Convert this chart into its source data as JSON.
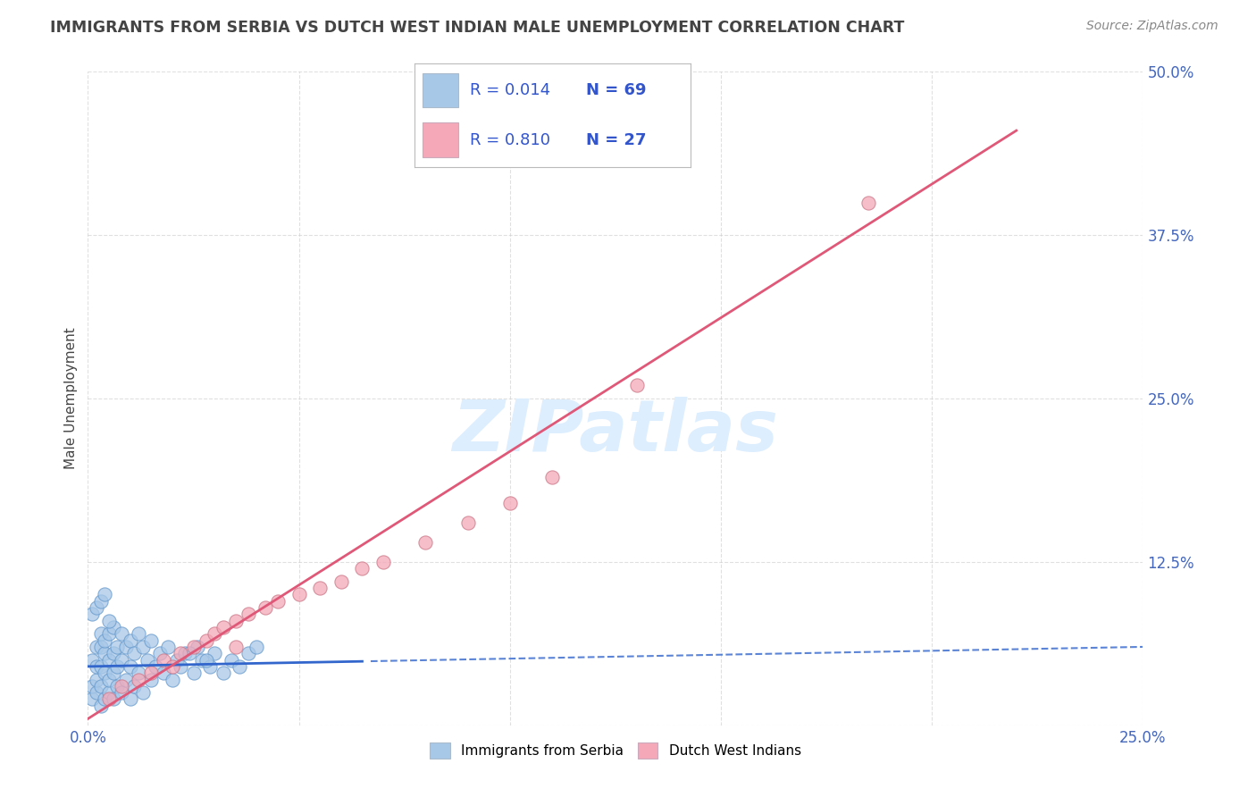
{
  "title": "IMMIGRANTS FROM SERBIA VS DUTCH WEST INDIAN MALE UNEMPLOYMENT CORRELATION CHART",
  "source_text": "Source: ZipAtlas.com",
  "ylabel": "Male Unemployment",
  "xlim": [
    0.0,
    0.25
  ],
  "ylim": [
    0.0,
    0.5
  ],
  "xtick_positions": [
    0.0,
    0.25
  ],
  "xtick_labels": [
    "0.0%",
    "25.0%"
  ],
  "yticks": [
    0.0,
    0.125,
    0.25,
    0.375,
    0.5
  ],
  "ytick_labels": [
    "",
    "12.5%",
    "25.0%",
    "37.5%",
    "50.0%"
  ],
  "serbia_color": "#a8c8e8",
  "dwi_color": "#f4a8b8",
  "serbia_line_color": "#3366cc",
  "dwi_line_color": "#e05878",
  "serbia_R": 0.014,
  "serbia_N": 69,
  "dwi_R": 0.81,
  "dwi_N": 27,
  "background_color": "#ffffff",
  "grid_color": "#cccccc",
  "title_color": "#444444",
  "axis_label_color": "#444444",
  "tick_color": "#4466bb",
  "legend_R_color": "#3355cc",
  "watermark": "ZIPatlas",
  "watermark_color": "#ddeeff",
  "serbia_scatter_x": [
    0.001,
    0.001,
    0.001,
    0.002,
    0.002,
    0.002,
    0.002,
    0.003,
    0.003,
    0.003,
    0.003,
    0.003,
    0.004,
    0.004,
    0.004,
    0.004,
    0.005,
    0.005,
    0.005,
    0.005,
    0.006,
    0.006,
    0.006,
    0.006,
    0.007,
    0.007,
    0.007,
    0.008,
    0.008,
    0.008,
    0.009,
    0.009,
    0.01,
    0.01,
    0.01,
    0.011,
    0.011,
    0.012,
    0.012,
    0.013,
    0.013,
    0.014,
    0.015,
    0.015,
    0.016,
    0.017,
    0.018,
    0.019,
    0.02,
    0.021,
    0.022,
    0.023,
    0.025,
    0.026,
    0.027,
    0.029,
    0.03,
    0.032,
    0.034,
    0.036,
    0.038,
    0.04,
    0.001,
    0.002,
    0.003,
    0.004,
    0.005,
    0.024,
    0.028
  ],
  "serbia_scatter_y": [
    0.02,
    0.03,
    0.05,
    0.025,
    0.035,
    0.045,
    0.06,
    0.015,
    0.03,
    0.045,
    0.06,
    0.07,
    0.02,
    0.04,
    0.055,
    0.065,
    0.025,
    0.035,
    0.05,
    0.07,
    0.02,
    0.04,
    0.055,
    0.075,
    0.03,
    0.045,
    0.06,
    0.025,
    0.05,
    0.07,
    0.035,
    0.06,
    0.02,
    0.045,
    0.065,
    0.03,
    0.055,
    0.04,
    0.07,
    0.025,
    0.06,
    0.05,
    0.035,
    0.065,
    0.045,
    0.055,
    0.04,
    0.06,
    0.035,
    0.05,
    0.045,
    0.055,
    0.04,
    0.06,
    0.05,
    0.045,
    0.055,
    0.04,
    0.05,
    0.045,
    0.055,
    0.06,
    0.085,
    0.09,
    0.095,
    0.1,
    0.08,
    0.055,
    0.05
  ],
  "dwi_scatter_x": [
    0.005,
    0.008,
    0.012,
    0.015,
    0.018,
    0.02,
    0.022,
    0.025,
    0.028,
    0.03,
    0.032,
    0.035,
    0.038,
    0.042,
    0.045,
    0.05,
    0.055,
    0.06,
    0.065,
    0.07,
    0.08,
    0.09,
    0.1,
    0.11,
    0.13,
    0.185,
    0.035
  ],
  "dwi_scatter_y": [
    0.02,
    0.03,
    0.035,
    0.04,
    0.05,
    0.045,
    0.055,
    0.06,
    0.065,
    0.07,
    0.075,
    0.08,
    0.085,
    0.09,
    0.095,
    0.1,
    0.105,
    0.11,
    0.12,
    0.125,
    0.14,
    0.155,
    0.17,
    0.19,
    0.26,
    0.4,
    0.06
  ],
  "serbia_trendline_x": [
    0.0,
    0.25
  ],
  "serbia_trendline_y": [
    0.045,
    0.06
  ],
  "dwi_trendline_x": [
    0.0,
    0.22
  ],
  "dwi_trendline_y": [
    0.005,
    0.455
  ]
}
